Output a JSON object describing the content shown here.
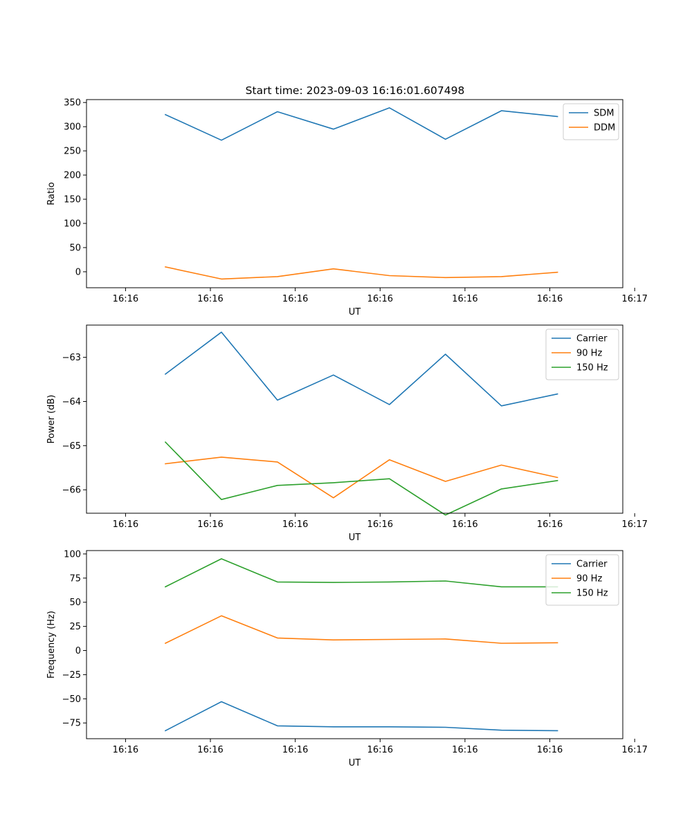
{
  "figure": {
    "title": "Start time: 2023-09-03 16:16:01.607498"
  },
  "chart_data": [
    {
      "type": "line",
      "title": "Start time: 2023-09-03 16:16:01.607498",
      "xlabel": "UT",
      "ylabel": "Ratio",
      "x_tick_labels": [
        "16:16",
        "16:16",
        "16:16",
        "16:16",
        "16:16",
        "16:16",
        "16:17"
      ],
      "y_ticks": [
        0,
        50,
        100,
        150,
        200,
        250,
        300,
        350
      ],
      "y_tick_labels": [
        "0",
        "50",
        "100",
        "150",
        "200",
        "250",
        "300",
        "350"
      ],
      "xlim": [
        -0.46,
        5.86
      ],
      "ylim": [
        -33,
        356
      ],
      "x": [
        0.47,
        1.13,
        1.79,
        2.45,
        3.11,
        3.77,
        4.43,
        5.09
      ],
      "series": [
        {
          "name": "SDM",
          "color": "#1f77b4",
          "values": [
            325,
            272,
            331,
            295,
            339,
            274,
            333,
            321
          ]
        },
        {
          "name": "DDM",
          "color": "#ff7f0e",
          "values": [
            10,
            -15,
            -10,
            6,
            -8,
            -12,
            -10,
            -1
          ]
        }
      ],
      "legend": "upper right"
    },
    {
      "type": "line",
      "title": "",
      "xlabel": "UT",
      "ylabel": "Power (dB)",
      "x_tick_labels": [
        "16:16",
        "16:16",
        "16:16",
        "16:16",
        "16:16",
        "16:16",
        "16:17"
      ],
      "y_ticks": [
        -66,
        -65,
        -64,
        -63
      ],
      "y_tick_labels": [
        "−66",
        "−65",
        "−64",
        "−63"
      ],
      "xlim": [
        -0.46,
        5.86
      ],
      "ylim": [
        -66.53,
        -62.27
      ],
      "x": [
        0.47,
        1.13,
        1.79,
        2.45,
        3.11,
        3.77,
        4.43,
        5.09
      ],
      "series": [
        {
          "name": "Carrier",
          "color": "#1f77b4",
          "values": [
            -63.38,
            -62.43,
            -63.97,
            -63.4,
            -64.07,
            -62.93,
            -64.1,
            -63.83
          ]
        },
        {
          "name": "90 Hz",
          "color": "#ff7f0e",
          "values": [
            -65.41,
            -65.26,
            -65.37,
            -66.18,
            -65.32,
            -65.81,
            -65.44,
            -65.72
          ]
        },
        {
          "name": "150 Hz",
          "color": "#2ca02c",
          "values": [
            -64.92,
            -66.22,
            -65.9,
            -65.84,
            -65.75,
            -66.57,
            -65.98,
            -65.79
          ]
        }
      ],
      "legend": "upper right"
    },
    {
      "type": "line",
      "title": "",
      "xlabel": "UT",
      "ylabel": "Frequency (Hz)",
      "x_tick_labels": [
        "16:16",
        "16:16",
        "16:16",
        "16:16",
        "16:16",
        "16:16",
        "16:17"
      ],
      "y_ticks": [
        -75,
        -50,
        -25,
        0,
        25,
        50,
        75,
        100
      ],
      "y_tick_labels": [
        "−75",
        "−50",
        "−25",
        "0",
        "25",
        "50",
        "75",
        "100"
      ],
      "xlim": [
        -0.46,
        5.86
      ],
      "ylim": [
        -91.3,
        103.5
      ],
      "x": [
        0.47,
        1.13,
        1.79,
        2.45,
        3.11,
        3.77,
        4.43,
        5.09
      ],
      "series": [
        {
          "name": "Carrier",
          "color": "#1f77b4",
          "values": [
            -83,
            -53,
            -78,
            -79,
            -79,
            -79.5,
            -82.5,
            -83
          ]
        },
        {
          "name": "90 Hz",
          "color": "#ff7f0e",
          "values": [
            7.5,
            36,
            13,
            11,
            11.5,
            12,
            7.5,
            8
          ]
        },
        {
          "name": "150 Hz",
          "color": "#2ca02c",
          "values": [
            66,
            95,
            71,
            70.5,
            71,
            72,
            66,
            66
          ]
        }
      ],
      "legend": "upper right"
    }
  ]
}
